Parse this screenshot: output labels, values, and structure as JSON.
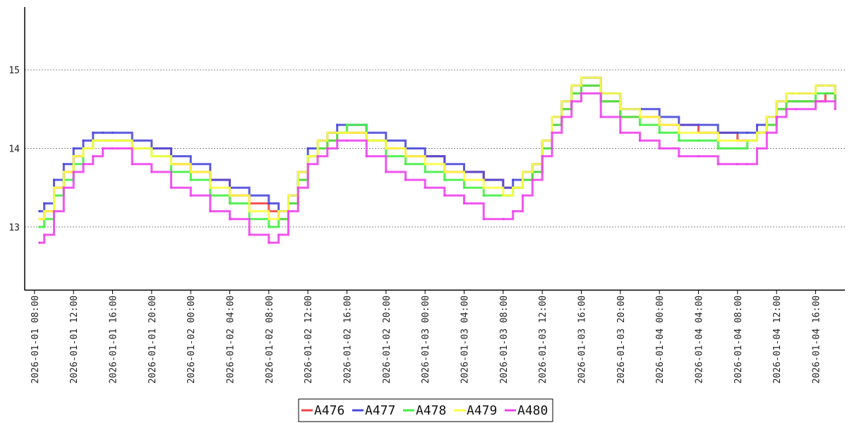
{
  "chart_data": {
    "type": "line",
    "title": "",
    "xlabel": "",
    "ylabel": "",
    "ylim": [
      12.2,
      15.8
    ],
    "xlim": [
      "2026-01-01 07:00",
      "2026-01-04 19:00"
    ],
    "step": true,
    "grid": {
      "horizontal": true,
      "style": "dotted"
    },
    "legend_position": "bottom-center",
    "y_ticks": [
      13,
      14,
      15
    ],
    "x_ticks": [
      "2026-01-01 08:00",
      "2026-01-01 12:00",
      "2026-01-01 16:00",
      "2026-01-01 20:00",
      "2026-01-02 00:00",
      "2026-01-02 04:00",
      "2026-01-02 08:00",
      "2026-01-02 12:00",
      "2026-01-02 16:00",
      "2026-01-02 20:00",
      "2026-01-03 00:00",
      "2026-01-03 04:00",
      "2026-01-03 08:00",
      "2026-01-03 12:00",
      "2026-01-03 16:00",
      "2026-01-03 20:00",
      "2026-01-04 00:00",
      "2026-01-04 04:00",
      "2026-01-04 08:00",
      "2026-01-04 12:00",
      "2026-01-04 16:00"
    ],
    "x": [
      "2026-01-01 08:30",
      "2026-01-01 09:00",
      "2026-01-01 10:00",
      "2026-01-01 11:00",
      "2026-01-01 12:00",
      "2026-01-01 13:00",
      "2026-01-01 14:00",
      "2026-01-01 15:00",
      "2026-01-01 16:00",
      "2026-01-01 18:00",
      "2026-01-01 20:00",
      "2026-01-01 22:00",
      "2026-01-02 00:00",
      "2026-01-02 02:00",
      "2026-01-02 04:00",
      "2026-01-02 06:00",
      "2026-01-02 08:00",
      "2026-01-02 09:00",
      "2026-01-02 10:00",
      "2026-01-02 11:00",
      "2026-01-02 12:00",
      "2026-01-02 13:00",
      "2026-01-02 14:00",
      "2026-01-02 15:00",
      "2026-01-02 16:00",
      "2026-01-02 18:00",
      "2026-01-02 20:00",
      "2026-01-02 22:00",
      "2026-01-03 00:00",
      "2026-01-03 02:00",
      "2026-01-03 04:00",
      "2026-01-03 06:00",
      "2026-01-03 08:00",
      "2026-01-03 09:00",
      "2026-01-03 10:00",
      "2026-01-03 11:00",
      "2026-01-03 12:00",
      "2026-01-03 13:00",
      "2026-01-03 14:00",
      "2026-01-03 15:00",
      "2026-01-03 16:00",
      "2026-01-03 18:00",
      "2026-01-03 20:00",
      "2026-01-03 22:00",
      "2026-01-04 00:00",
      "2026-01-04 02:00",
      "2026-01-04 04:00",
      "2026-01-04 06:00",
      "2026-01-04 08:00",
      "2026-01-04 09:00",
      "2026-01-04 10:00",
      "2026-01-04 11:00",
      "2026-01-04 12:00",
      "2026-01-04 13:00",
      "2026-01-04 14:00",
      "2026-01-04 16:00",
      "2026-01-04 17:00",
      "2026-01-04 18:00"
    ],
    "series": [
      {
        "name": "A476",
        "color": "#ee4444",
        "values": [
          13.1,
          13.2,
          13.5,
          13.7,
          13.9,
          14.0,
          14.1,
          14.1,
          14.1,
          14.0,
          14.0,
          13.8,
          13.7,
          13.6,
          13.4,
          13.3,
          13.2,
          13.1,
          13.3,
          13.6,
          13.9,
          14.0,
          14.1,
          14.2,
          14.2,
          14.1,
          14.0,
          13.9,
          13.9,
          13.7,
          13.7,
          13.6,
          13.5,
          13.5,
          13.6,
          13.7,
          14.0,
          14.3,
          14.5,
          14.7,
          14.8,
          14.6,
          14.4,
          14.4,
          14.3,
          14.3,
          14.2,
          14.2,
          14.1,
          14.1,
          14.2,
          14.3,
          14.5,
          14.6,
          14.6,
          14.6,
          14.7,
          14.6
        ]
      },
      {
        "name": "A477",
        "color": "#4a4adc",
        "values": [
          13.2,
          13.3,
          13.6,
          13.8,
          14.0,
          14.1,
          14.2,
          14.2,
          14.2,
          14.1,
          14.0,
          13.9,
          13.8,
          13.6,
          13.5,
          13.4,
          13.3,
          13.2,
          13.4,
          13.7,
          14.0,
          14.1,
          14.2,
          14.3,
          14.3,
          14.2,
          14.1,
          14.0,
          13.9,
          13.8,
          13.7,
          13.6,
          13.5,
          13.6,
          13.7,
          13.8,
          14.1,
          14.4,
          14.6,
          14.8,
          14.9,
          14.7,
          14.5,
          14.5,
          14.4,
          14.3,
          14.3,
          14.2,
          14.2,
          14.2,
          14.3,
          14.4,
          14.6,
          14.7,
          14.7,
          14.8,
          14.8,
          14.7
        ]
      },
      {
        "name": "A478",
        "color": "#44ee44",
        "values": [
          13.0,
          13.1,
          13.4,
          13.6,
          13.8,
          14.0,
          14.1,
          14.1,
          14.1,
          14.0,
          13.9,
          13.7,
          13.6,
          13.4,
          13.3,
          13.1,
          13.0,
          13.1,
          13.3,
          13.6,
          13.9,
          14.0,
          14.1,
          14.2,
          14.3,
          14.1,
          13.9,
          13.8,
          13.7,
          13.6,
          13.5,
          13.4,
          13.4,
          13.5,
          13.6,
          13.7,
          14.0,
          14.3,
          14.5,
          14.7,
          14.8,
          14.6,
          14.4,
          14.3,
          14.2,
          14.1,
          14.1,
          14.0,
          14.0,
          14.1,
          14.2,
          14.3,
          14.5,
          14.6,
          14.6,
          14.7,
          14.7,
          14.6
        ]
      },
      {
        "name": "A479",
        "color": "#ffff44",
        "values": [
          13.1,
          13.2,
          13.5,
          13.7,
          13.9,
          14.0,
          14.1,
          14.1,
          14.1,
          14.0,
          13.9,
          13.8,
          13.7,
          13.5,
          13.4,
          13.2,
          13.1,
          13.2,
          13.4,
          13.7,
          13.9,
          14.1,
          14.2,
          14.2,
          14.2,
          14.1,
          14.0,
          13.9,
          13.8,
          13.7,
          13.6,
          13.5,
          13.4,
          13.5,
          13.7,
          13.8,
          14.1,
          14.4,
          14.6,
          14.8,
          14.9,
          14.7,
          14.5,
          14.4,
          14.3,
          14.2,
          14.2,
          14.1,
          14.1,
          14.1,
          14.2,
          14.4,
          14.6,
          14.7,
          14.7,
          14.8,
          14.8,
          14.7
        ]
      },
      {
        "name": "A480",
        "color": "#ee44ee",
        "values": [
          12.8,
          12.9,
          13.2,
          13.5,
          13.7,
          13.8,
          13.9,
          14.0,
          14.0,
          13.8,
          13.7,
          13.5,
          13.4,
          13.2,
          13.1,
          12.9,
          12.8,
          12.9,
          13.2,
          13.5,
          13.8,
          13.9,
          14.0,
          14.1,
          14.1,
          13.9,
          13.7,
          13.6,
          13.5,
          13.4,
          13.3,
          13.1,
          13.1,
          13.2,
          13.4,
          13.6,
          13.9,
          14.2,
          14.4,
          14.6,
          14.7,
          14.4,
          14.2,
          14.1,
          14.0,
          13.9,
          13.9,
          13.8,
          13.8,
          13.8,
          14.0,
          14.2,
          14.4,
          14.5,
          14.5,
          14.6,
          14.6,
          14.5
        ]
      }
    ]
  }
}
